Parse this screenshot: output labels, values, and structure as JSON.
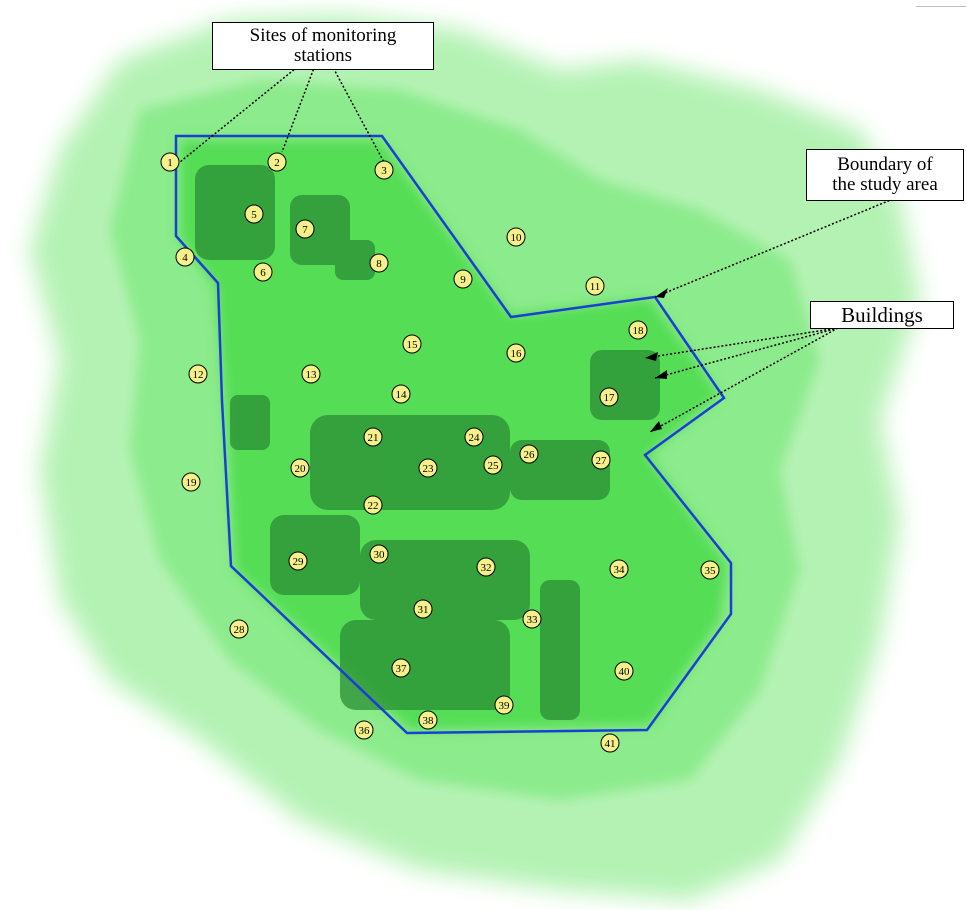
{
  "labels": {
    "sites": "Sites of monitoring\nstations",
    "boundary": "Boundary of\nthe study area",
    "buildings": "Buildings"
  },
  "colors": {
    "outer_green": "#a8f0a8",
    "mid_green": "#7de87d",
    "inner_green": "#4ddc4d",
    "building_green": "#1f8a2a",
    "boundary": "#1a3fd6",
    "marker_fill": "#f5f08a"
  },
  "stations": [
    {
      "id": "1"
    },
    {
      "id": "2"
    },
    {
      "id": "3"
    },
    {
      "id": "4"
    },
    {
      "id": "5"
    },
    {
      "id": "6"
    },
    {
      "id": "7"
    },
    {
      "id": "8"
    },
    {
      "id": "9"
    },
    {
      "id": "10"
    },
    {
      "id": "11"
    },
    {
      "id": "12"
    },
    {
      "id": "13"
    },
    {
      "id": "14"
    },
    {
      "id": "15"
    },
    {
      "id": "16"
    },
    {
      "id": "17"
    },
    {
      "id": "18"
    },
    {
      "id": "19"
    },
    {
      "id": "20"
    },
    {
      "id": "21"
    },
    {
      "id": "22"
    },
    {
      "id": "23"
    },
    {
      "id": "24"
    },
    {
      "id": "25"
    },
    {
      "id": "26"
    },
    {
      "id": "27"
    },
    {
      "id": "28"
    },
    {
      "id": "29"
    },
    {
      "id": "30"
    },
    {
      "id": "31"
    },
    {
      "id": "32"
    },
    {
      "id": "33"
    },
    {
      "id": "34"
    },
    {
      "id": "35"
    },
    {
      "id": "36"
    },
    {
      "id": "37"
    },
    {
      "id": "38"
    },
    {
      "id": "39"
    },
    {
      "id": "40"
    },
    {
      "id": "41"
    }
  ]
}
